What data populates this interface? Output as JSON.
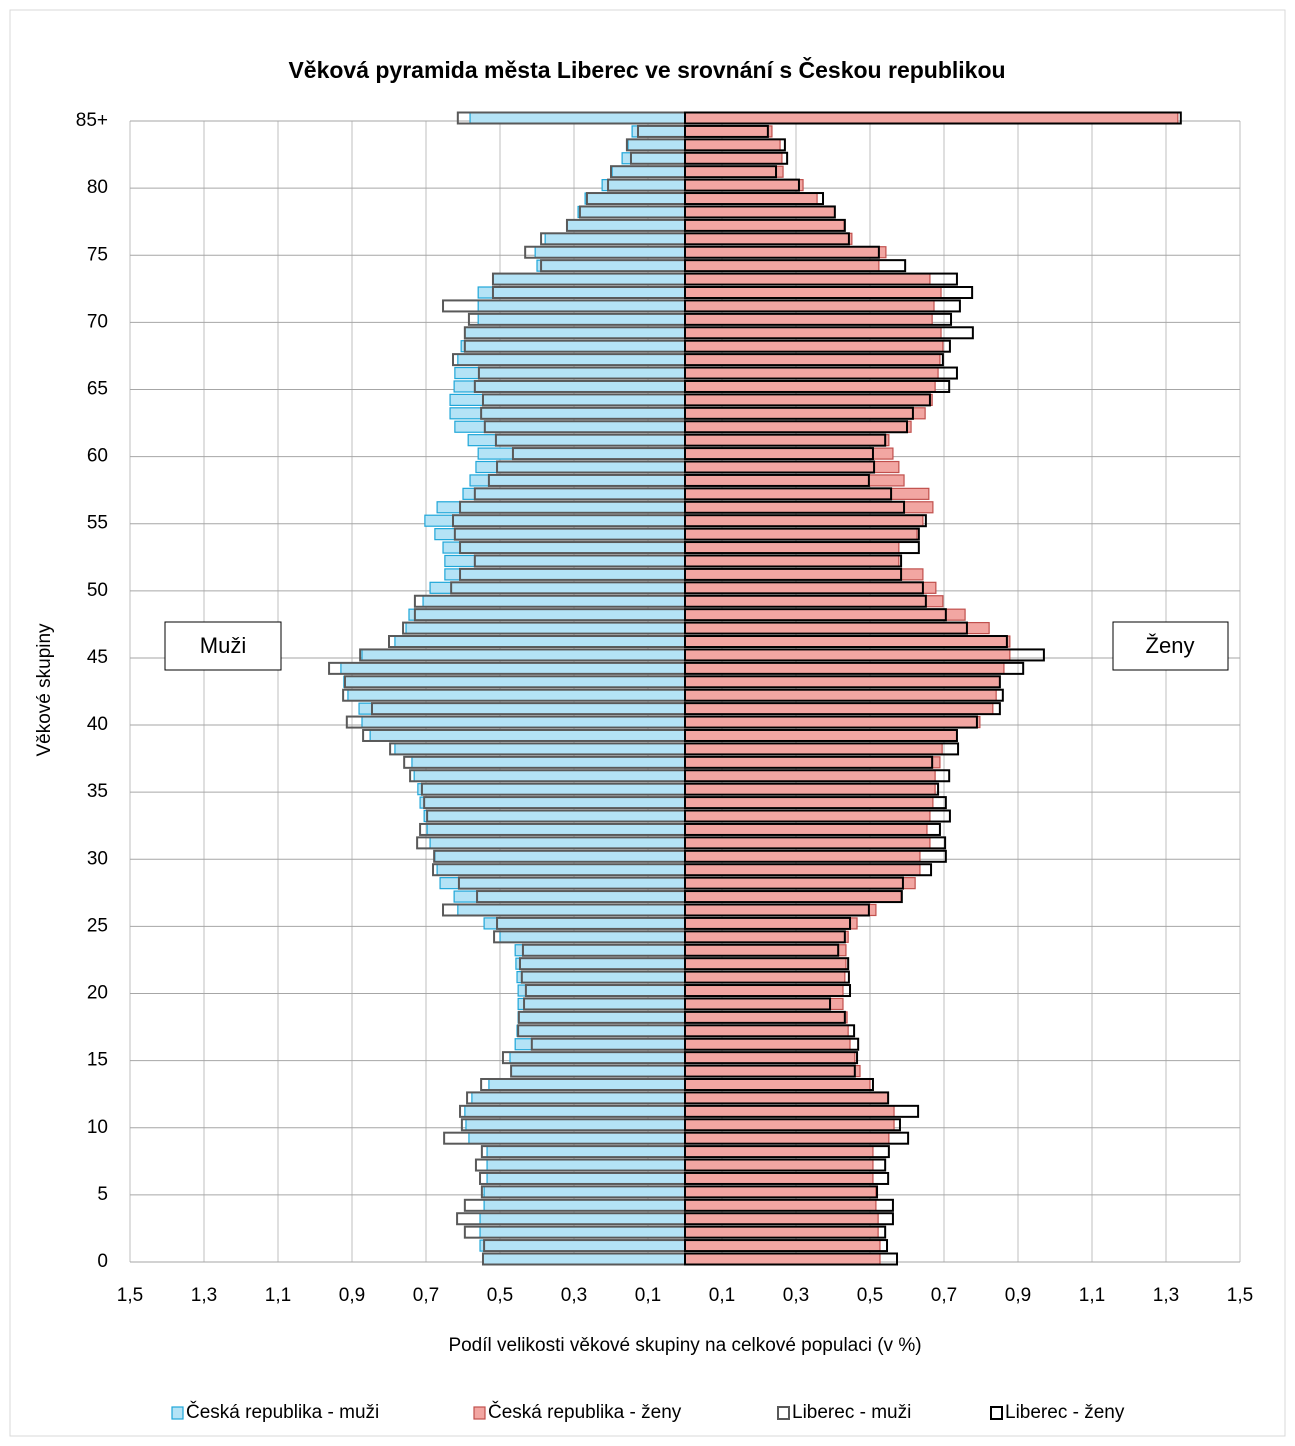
{
  "chart_data": {
    "type": "pyramid",
    "title": "Věková pyramida města Liberec ve srovnání s Českou republikou",
    "x_label": "Podíl velikosti věkové skupiny na celkové populaci (v %)",
    "y_label": "Věkové skupiny",
    "annotations": [
      "Muži",
      "Ženy"
    ],
    "categories": [
      "0",
      null,
      null,
      null,
      null,
      "5",
      null,
      null,
      null,
      null,
      "10",
      null,
      null,
      null,
      null,
      "15",
      null,
      null,
      null,
      null,
      "20",
      null,
      null,
      null,
      null,
      "25",
      null,
      null,
      null,
      null,
      "30",
      null,
      null,
      null,
      null,
      "35",
      null,
      null,
      null,
      null,
      "40",
      null,
      null,
      null,
      null,
      "45",
      null,
      null,
      null,
      null,
      "50",
      null,
      null,
      null,
      null,
      "55",
      null,
      null,
      null,
      null,
      "60",
      null,
      null,
      null,
      null,
      "65",
      null,
      null,
      null,
      null,
      "70",
      null,
      null,
      null,
      null,
      "75",
      null,
      null,
      null,
      null,
      "80",
      null,
      null,
      null,
      null,
      "85+"
    ],
    "xlim": [
      -1.5,
      1.5
    ],
    "xticks": [
      {
        "value": -1.5,
        "label": "1,5"
      },
      {
        "value": -1.3,
        "label": "1,3"
      },
      {
        "value": -1.1,
        "label": "1,1"
      },
      {
        "value": -0.9,
        "label": "0,9"
      },
      {
        "value": -0.7,
        "label": "0,7"
      },
      {
        "value": -0.5,
        "label": "0,5"
      },
      {
        "value": -0.3,
        "label": "0,3"
      },
      {
        "value": -0.1,
        "label": "0,1"
      },
      {
        "value": 0.1,
        "label": "0,1"
      },
      {
        "value": 0.3,
        "label": "0,3"
      },
      {
        "value": 0.5,
        "label": "0,5"
      },
      {
        "value": 0.7,
        "label": "0,7"
      },
      {
        "value": 0.9,
        "label": "0,9"
      },
      {
        "value": 1.1,
        "label": "1,1"
      },
      {
        "value": 1.3,
        "label": "1,3"
      },
      {
        "value": 1.5,
        "label": "1,5"
      }
    ],
    "grid": true,
    "legend": "bottom",
    "series": [
      {
        "name": "Česká republika - muži",
        "color": "#1fa6d8",
        "fill": "#b4e3f6",
        "values": [
          -0.546,
          -0.554,
          -0.554,
          -0.554,
          -0.543,
          -0.543,
          -0.535,
          -0.535,
          -0.535,
          -0.584,
          -0.592,
          -0.595,
          -0.576,
          -0.53,
          -0.47,
          -0.473,
          -0.459,
          -0.454,
          -0.451,
          -0.451,
          -0.451,
          -0.454,
          -0.457,
          -0.459,
          -0.5,
          -0.543,
          -0.614,
          -0.624,
          -0.662,
          -0.67,
          -0.676,
          -0.689,
          -0.697,
          -0.705,
          -0.716,
          -0.722,
          -0.732,
          -0.738,
          -0.784,
          -0.851,
          -0.873,
          -0.881,
          -0.911,
          -0.922,
          -0.93,
          -0.873,
          -0.784,
          -0.754,
          -0.746,
          -0.708,
          -0.689,
          -0.649,
          -0.649,
          -0.654,
          -0.676,
          -0.703,
          -0.67,
          -0.6,
          -0.581,
          -0.565,
          -0.559,
          -0.586,
          -0.622,
          -0.635,
          -0.635,
          -0.624,
          -0.622,
          -0.614,
          -0.605,
          -0.595,
          -0.559,
          -0.559,
          -0.559,
          -0.519,
          -0.4,
          -0.405,
          -0.378,
          -0.319,
          -0.289,
          -0.27,
          -0.224,
          -0.197,
          -0.17,
          -0.154,
          -0.143,
          -0.581
        ]
      },
      {
        "name": "Česká republika - ženy",
        "color": "#c0504d",
        "fill": "#f2a6a2",
        "values": [
          0.527,
          0.527,
          0.522,
          0.522,
          0.516,
          0.516,
          0.508,
          0.508,
          0.508,
          0.551,
          0.565,
          0.565,
          0.549,
          0.5,
          0.473,
          0.459,
          0.446,
          0.441,
          0.438,
          0.427,
          0.427,
          0.432,
          0.435,
          0.435,
          0.441,
          0.465,
          0.516,
          0.584,
          0.622,
          0.635,
          0.635,
          0.662,
          0.654,
          0.662,
          0.67,
          0.676,
          0.676,
          0.689,
          0.695,
          0.735,
          0.797,
          0.832,
          0.841,
          0.851,
          0.862,
          0.878,
          0.878,
          0.822,
          0.757,
          0.697,
          0.678,
          0.643,
          0.578,
          0.578,
          0.627,
          0.643,
          0.67,
          0.659,
          0.592,
          0.578,
          0.562,
          0.551,
          0.611,
          0.649,
          0.668,
          0.676,
          0.684,
          0.689,
          0.697,
          0.692,
          0.668,
          0.673,
          0.692,
          0.662,
          0.524,
          0.543,
          0.451,
          0.43,
          0.405,
          0.357,
          0.319,
          0.265,
          0.262,
          0.257,
          0.235,
          1.332
        ]
      },
      {
        "name": "Liberec - muži",
        "color": "#595959",
        "values": [
          -0.546,
          -0.543,
          -0.595,
          -0.616,
          -0.595,
          -0.549,
          -0.554,
          -0.565,
          -0.549,
          -0.651,
          -0.603,
          -0.608,
          -0.589,
          -0.551,
          -0.47,
          -0.492,
          -0.414,
          -0.451,
          -0.449,
          -0.435,
          -0.43,
          -0.441,
          -0.446,
          -0.438,
          -0.516,
          -0.508,
          -0.654,
          -0.562,
          -0.611,
          -0.681,
          -0.678,
          -0.724,
          -0.716,
          -0.697,
          -0.705,
          -0.711,
          -0.743,
          -0.759,
          -0.797,
          -0.87,
          -0.914,
          -0.846,
          -0.924,
          -0.919,
          -0.962,
          -0.878,
          -0.8,
          -0.762,
          -0.73,
          -0.73,
          -0.632,
          -0.608,
          -0.568,
          -0.608,
          -0.622,
          -0.627,
          -0.608,
          -0.568,
          -0.53,
          -0.508,
          -0.465,
          -0.511,
          -0.541,
          -0.551,
          -0.546,
          -0.568,
          -0.557,
          -0.627,
          -0.595,
          -0.595,
          -0.584,
          -0.654,
          -0.519,
          -0.519,
          -0.389,
          -0.432,
          -0.389,
          -0.319,
          -0.284,
          -0.265,
          -0.208,
          -0.2,
          -0.146,
          -0.157,
          -0.127,
          -0.614
        ]
      },
      {
        "name": "Liberec - ženy",
        "color": "#000000",
        "values": [
          0.573,
          0.546,
          0.541,
          0.562,
          0.562,
          0.519,
          0.549,
          0.541,
          0.551,
          0.603,
          0.581,
          0.63,
          0.549,
          0.508,
          0.459,
          0.465,
          0.468,
          0.457,
          0.432,
          0.392,
          0.446,
          0.443,
          0.441,
          0.414,
          0.432,
          0.446,
          0.497,
          0.586,
          0.589,
          0.665,
          0.705,
          0.703,
          0.689,
          0.716,
          0.705,
          0.684,
          0.714,
          0.668,
          0.738,
          0.735,
          0.789,
          0.851,
          0.859,
          0.851,
          0.914,
          0.97,
          0.87,
          0.762,
          0.705,
          0.651,
          0.643,
          0.584,
          0.584,
          0.632,
          0.632,
          0.651,
          0.592,
          0.557,
          0.497,
          0.511,
          0.508,
          0.541,
          0.6,
          0.616,
          0.662,
          0.714,
          0.735,
          0.697,
          0.716,
          0.778,
          0.719,
          0.743,
          0.776,
          0.735,
          0.595,
          0.524,
          0.443,
          0.432,
          0.405,
          0.373,
          0.308,
          0.246,
          0.276,
          0.27,
          0.224,
          1.34
        ]
      }
    ]
  }
}
